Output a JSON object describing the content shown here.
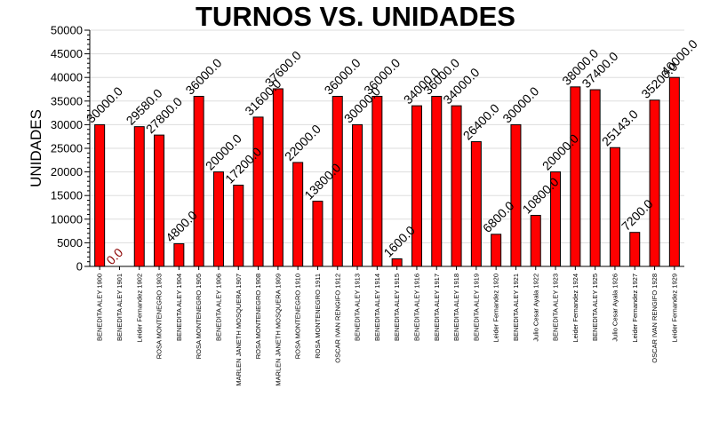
{
  "chart_data": {
    "type": "bar",
    "title": "TURNOS VS. UNIDADES",
    "xlabel": "",
    "ylabel": "UNIDADES",
    "ylim": [
      0,
      50000
    ],
    "yticks": [
      "0",
      "5000",
      "10000",
      "15000",
      "20000",
      "25000",
      "30000",
      "35000",
      "40000",
      "45000",
      "50000"
    ],
    "grid": true,
    "legend": "none",
    "bar_color": "#ff0000",
    "zero_label_color": "#8b0000",
    "categories": [
      "BENEDITA ALEY 1900",
      "BENEDITA ALEY 1901",
      "Leider Fernandez 1902",
      "ROSA MONTENEGRO 1903",
      "BENEDITA ALEY 1904",
      "ROSA MONTENEGRO 1905",
      "BENEDITA ALEY 1906",
      "MARLEN JANETH MOSQUERA 1907",
      "ROSA MONTENEGRO 1908",
      "MARLEN JANETH MOSQUERA 1909",
      "ROSA MONTENEGRO 1910",
      "ROSA MONTENEGRO 1911",
      "OSCAR IVAN RENGIFO 1912",
      "BENEDITA ALEY 1913",
      "BENEDITA ALEY 1914",
      "BENEDITA ALEY 1915",
      "BENEDITA ALEY 1916",
      "BENEDITA ALEY 1917",
      "BENEDITA ALEY 1918",
      "BENEDITA ALEY 1919",
      "Leider Fernandez 1920",
      "BENEDITA ALEY 1921",
      "Julio Cesar Ayala 1922",
      "BENEDITA ALEY 1923",
      "Leider Fernandez 1924",
      "BENEDITA ALEY 1925",
      "Julio Cesar Ayala 1926",
      "Leider Fernandez 1927",
      "OSCAR IVAN RENGIFO 1928",
      "Leider Fernandez 1929"
    ],
    "values": [
      30000,
      0,
      29580,
      27800,
      4800,
      36000,
      20000,
      17200,
      31600,
      37600,
      22000,
      13800,
      36000,
      30000,
      36000,
      1600,
      34000,
      36000,
      34000,
      26400,
      6800,
      30000,
      10800,
      20000,
      38000,
      37400,
      25143,
      7200,
      35200,
      40000
    ],
    "data_labels": [
      "30000.0",
      "0.0",
      "29580.0",
      "27800.0",
      "4800.0",
      "36000.0",
      "20000.0",
      "17200.0",
      "31600.0",
      "37600.0",
      "22000.0",
      "13800.0",
      "36000.0",
      "30000.0",
      "36000.0",
      "1600.0",
      "34000.0",
      "36000.0",
      "34000.0",
      "26400.0",
      "6800.0",
      "30000.0",
      "10800.0",
      "20000.0",
      "38000.0",
      "37400.0",
      "25143.0",
      "7200.0",
      "35200.0",
      "40000.0"
    ]
  }
}
